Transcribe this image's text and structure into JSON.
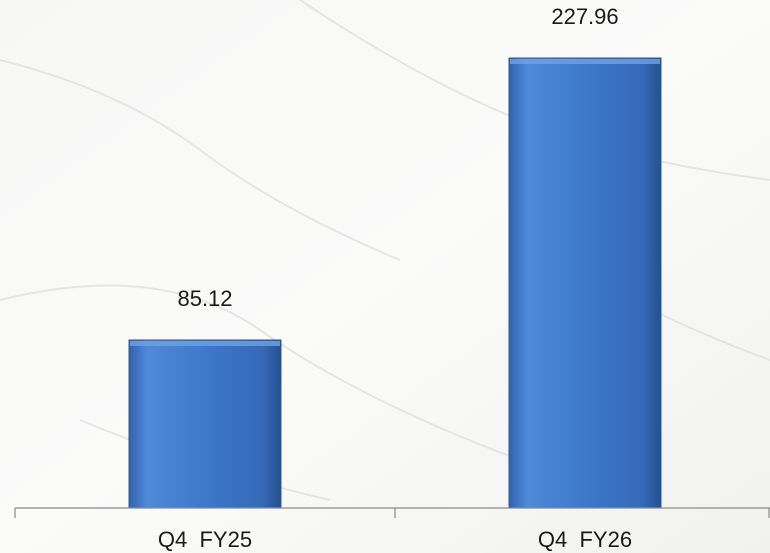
{
  "chart_data": {
    "type": "bar",
    "categories": [
      "Q4  FY25",
      "Q4  FY26"
    ],
    "values": [
      85.12,
      227.96
    ],
    "color": "#3a74c8"
  }
}
